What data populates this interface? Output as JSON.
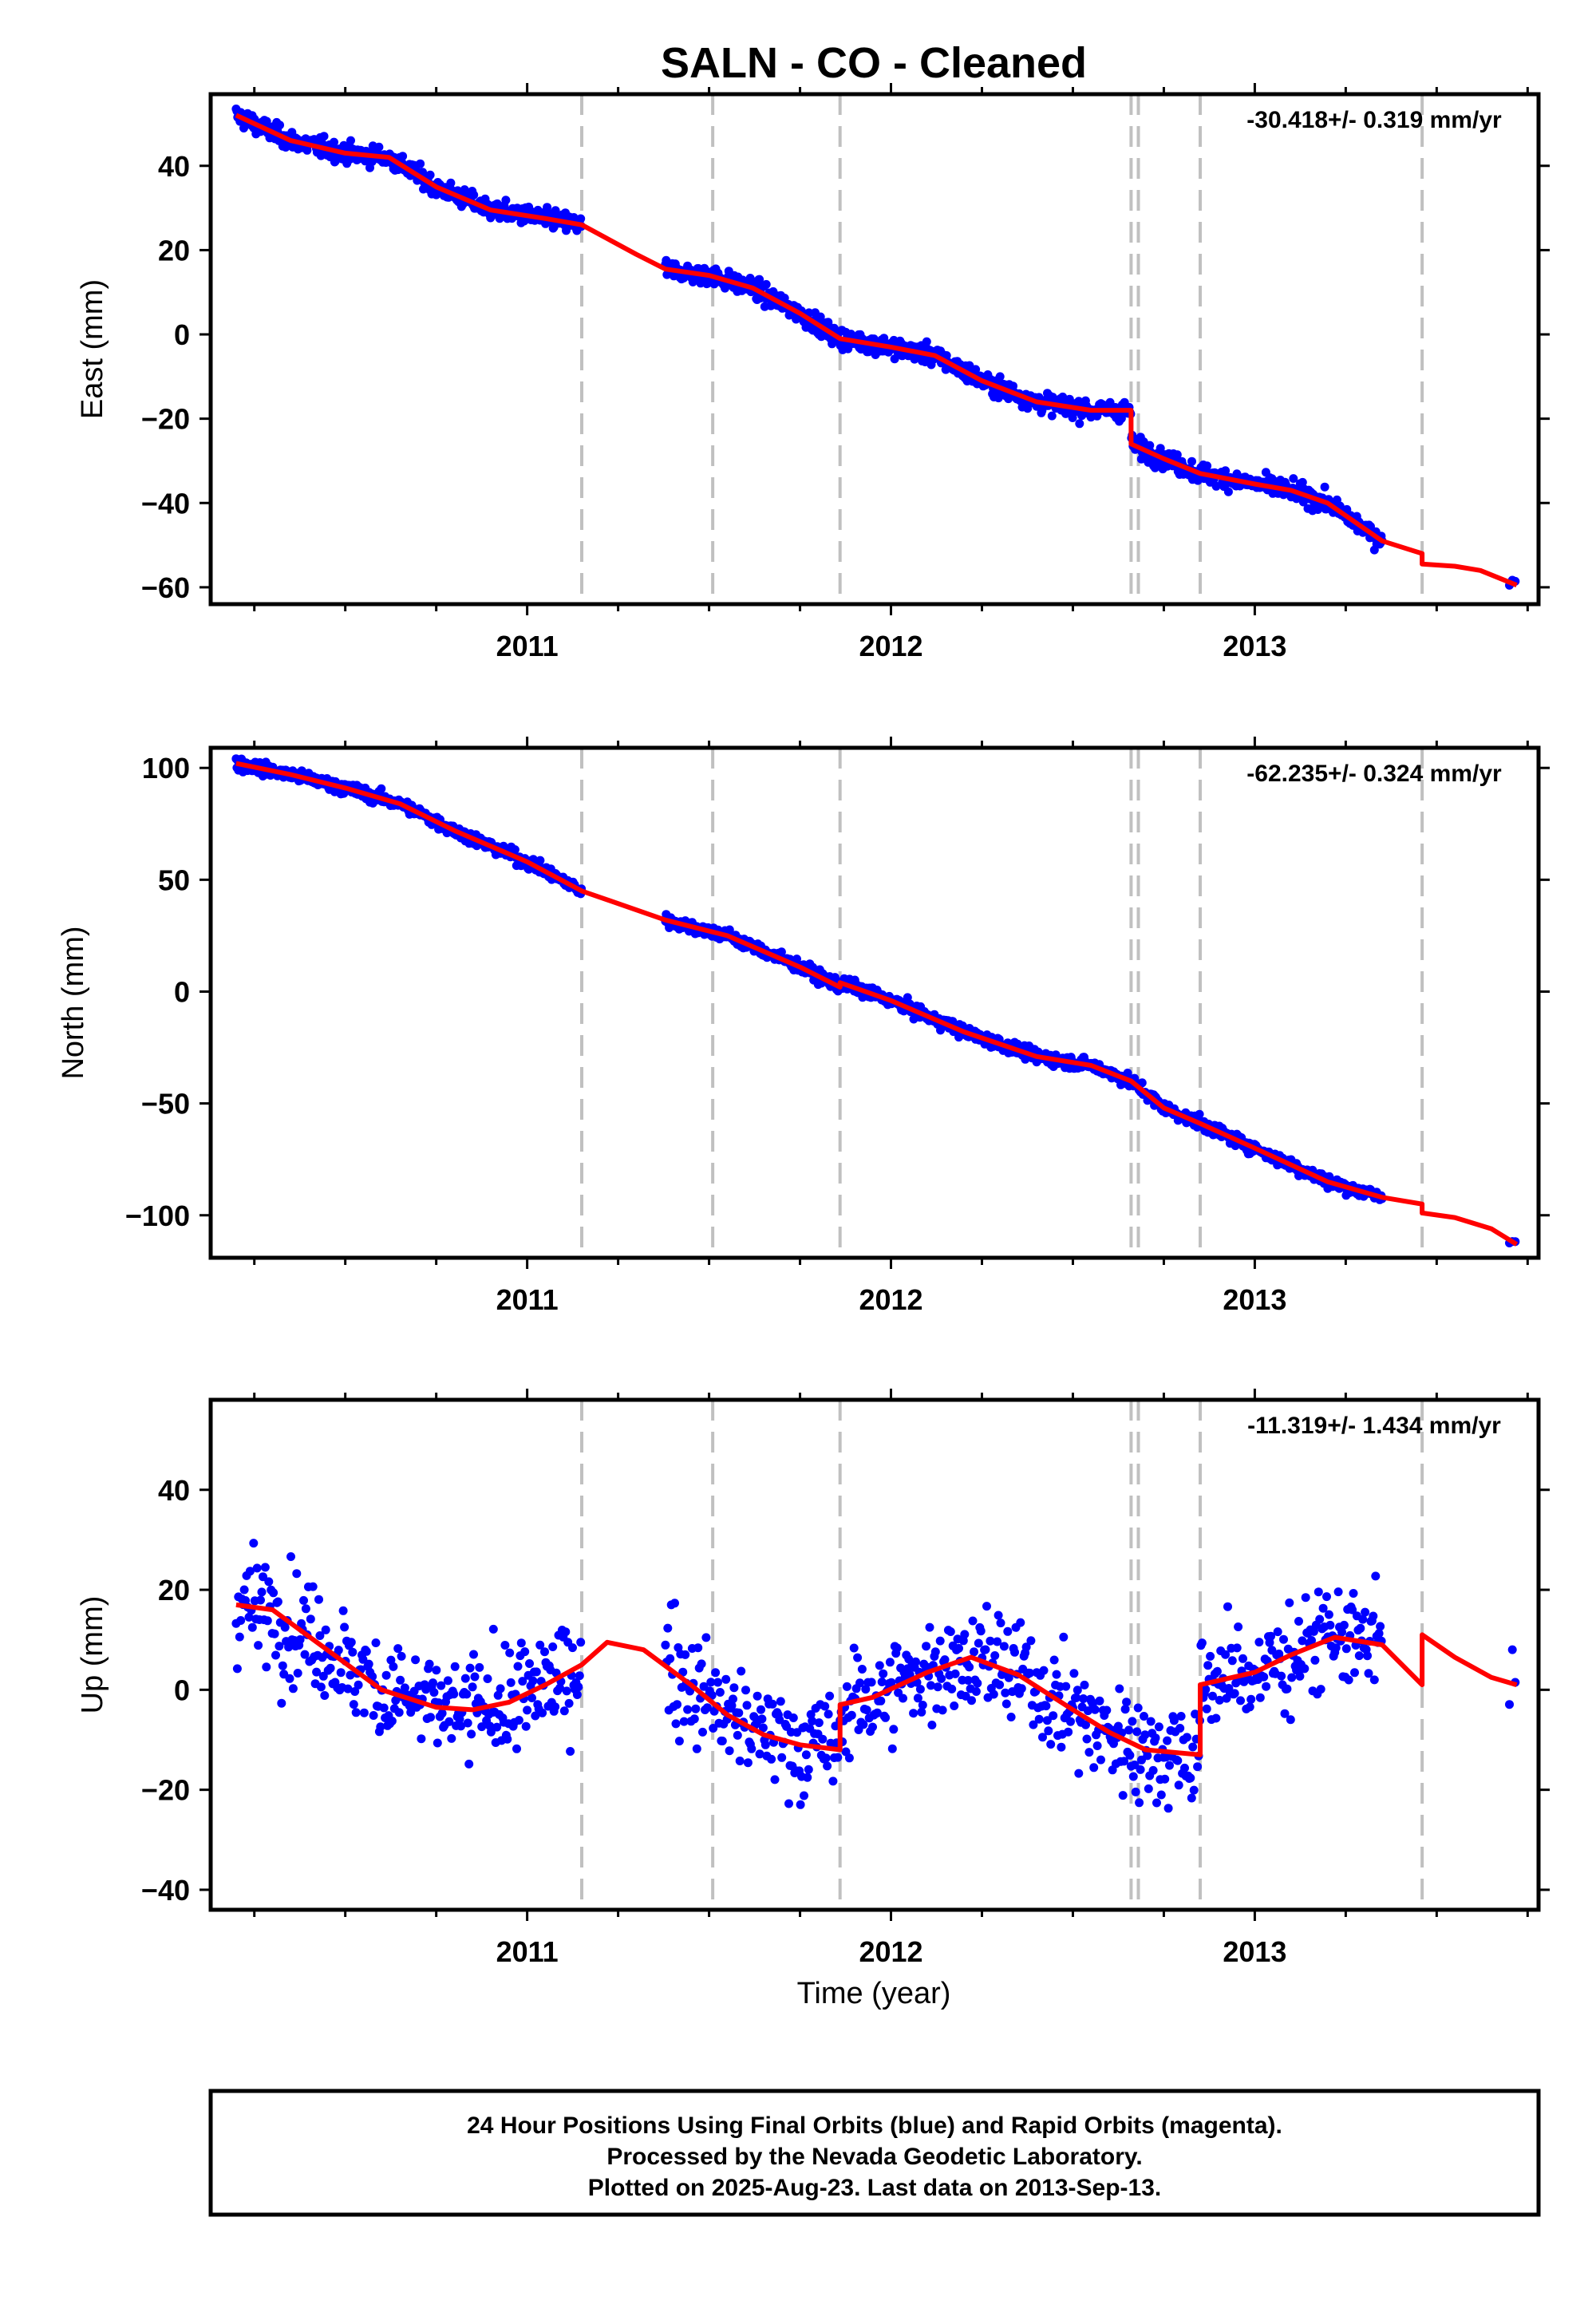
{
  "title": "SALN  - CO - Cleaned",
  "xlabel": "Time (year)",
  "colors": {
    "points": "#0000ff",
    "model": "#ff0000",
    "event_lines": "#c0c0c0",
    "frame": "#000000"
  },
  "footer": {
    "line1": "24 Hour Positions Using Final Orbits (blue) and Rapid Orbits (magenta).",
    "line2": "Processed by the Nevada Geodetic Laboratory.",
    "line3": "Plotted on 2025-Aug-23. Last data on 2013-Sep-13."
  },
  "chart_data": [
    {
      "type": "scatter",
      "component": "East",
      "ylabel": "East (mm)",
      "rate_text": "-30.418+/- 0.319 mm/yr",
      "xlim": [
        2010.13,
        2013.78
      ],
      "ylim": [
        -64,
        57
      ],
      "x_ticks": [
        2011,
        2012,
        2013
      ],
      "y_ticks": [
        -60,
        -40,
        -20,
        0,
        20,
        40
      ],
      "y_tick_labels": [
        "−60",
        "−40",
        "−20",
        "0",
        "20",
        "40"
      ],
      "event_lines_x": [
        2011.15,
        2011.51,
        2011.86,
        2012.66,
        2012.68,
        2012.85,
        2013.46
      ],
      "data_segments": [
        [
          2010.2,
          2011.15
        ],
        [
          2011.38,
          2013.35
        ],
        [
          2013.7,
          2013.72
        ]
      ],
      "model_line": {
        "x": [
          2010.2,
          2010.35,
          2010.5,
          2010.62,
          2010.75,
          2010.9,
          2011.05,
          2011.15,
          2011.3,
          2011.38,
          2011.5,
          2011.62,
          2011.75,
          2011.86,
          2012.0,
          2012.12,
          2012.25,
          2012.4,
          2012.55,
          2012.66,
          2012.66,
          2012.75,
          2012.85,
          2013.0,
          2013.1,
          2013.2,
          2013.35,
          2013.46,
          2013.46,
          2013.55,
          2013.62,
          2013.72
        ],
        "y": [
          52,
          46,
          43,
          42,
          35,
          29.5,
          27.5,
          26,
          19,
          15.5,
          14,
          11,
          5,
          -1,
          -3,
          -5,
          -11,
          -16,
          -18,
          -18,
          -26,
          -29.5,
          -33,
          -35.5,
          -37,
          -40,
          -49,
          -52,
          -54.5,
          -55,
          -56,
          -59.5
        ]
      }
    },
    {
      "type": "scatter",
      "component": "North",
      "ylabel": "North (mm)",
      "rate_text": "-62.235+/- 0.324 mm/yr",
      "xlim": [
        2010.13,
        2013.78
      ],
      "ylim": [
        -119,
        109
      ],
      "x_ticks": [
        2011,
        2012,
        2013
      ],
      "y_ticks": [
        -100,
        -50,
        0,
        50,
        100
      ],
      "y_tick_labels": [
        "−100",
        "−50",
        "0",
        "50",
        "100"
      ],
      "event_lines_x": [
        2011.15,
        2011.51,
        2011.86,
        2012.66,
        2012.68,
        2012.85,
        2013.46
      ],
      "data_segments": [
        [
          2010.2,
          2011.15
        ],
        [
          2011.38,
          2013.35
        ],
        [
          2013.7,
          2013.72
        ]
      ],
      "model_line": {
        "x": [
          2010.2,
          2010.35,
          2010.5,
          2010.65,
          2010.8,
          2011.0,
          2011.15,
          2011.38,
          2011.55,
          2011.75,
          2011.86,
          2011.86,
          2012.0,
          2012.2,
          2012.4,
          2012.55,
          2012.66,
          2012.75,
          2012.85,
          2013.0,
          2013.2,
          2013.35,
          2013.46,
          2013.46,
          2013.55,
          2013.65,
          2013.72
        ],
        "y": [
          102,
          97,
          91,
          84,
          72,
          58,
          45,
          32,
          25,
          11,
          2,
          4,
          -4,
          -18,
          -29,
          -33,
          -40,
          -52,
          -59,
          -70,
          -85,
          -92,
          -95,
          -99,
          -101,
          -106,
          -113
        ]
      }
    },
    {
      "type": "scatter",
      "component": "Up",
      "ylabel": "Up (mm)",
      "rate_text": "-11.319+/- 1.434 mm/yr",
      "xlim": [
        2010.13,
        2013.78
      ],
      "ylim": [
        -44,
        58
      ],
      "x_ticks": [
        2011,
        2012,
        2013
      ],
      "y_ticks": [
        -40,
        -20,
        0,
        20,
        40
      ],
      "y_tick_labels": [
        "−40",
        "−20",
        "0",
        "20",
        "40"
      ],
      "event_lines_x": [
        2011.15,
        2011.51,
        2011.86,
        2012.66,
        2012.68,
        2012.85,
        2013.46
      ],
      "data_segments": [
        [
          2010.2,
          2011.15
        ],
        [
          2011.38,
          2013.35
        ],
        [
          2013.7,
          2013.72
        ]
      ],
      "model_line": {
        "x": [
          2010.2,
          2010.3,
          2010.45,
          2010.6,
          2010.75,
          2010.85,
          2010.95,
          2011.05,
          2011.15,
          2011.22,
          2011.32,
          2011.45,
          2011.55,
          2011.65,
          2011.75,
          2011.86,
          2011.86,
          2011.95,
          2012.1,
          2012.22,
          2012.35,
          2012.5,
          2012.6,
          2012.7,
          2012.85,
          2012.85,
          2013.0,
          2013.1,
          2013.22,
          2013.35,
          2013.46,
          2013.46,
          2013.55,
          2013.65,
          2013.72
        ],
        "y": [
          17,
          16,
          8,
          0,
          -3.5,
          -4,
          -2.5,
          1,
          5,
          9.5,
          8,
          1,
          -5,
          -9,
          -11,
          -12,
          -3,
          -1.5,
          3.5,
          6.5,
          3,
          -4,
          -8.5,
          -12,
          -13,
          1,
          3.5,
          7,
          10.5,
          9,
          1,
          11,
          6.5,
          2.5,
          1
        ]
      }
    }
  ]
}
